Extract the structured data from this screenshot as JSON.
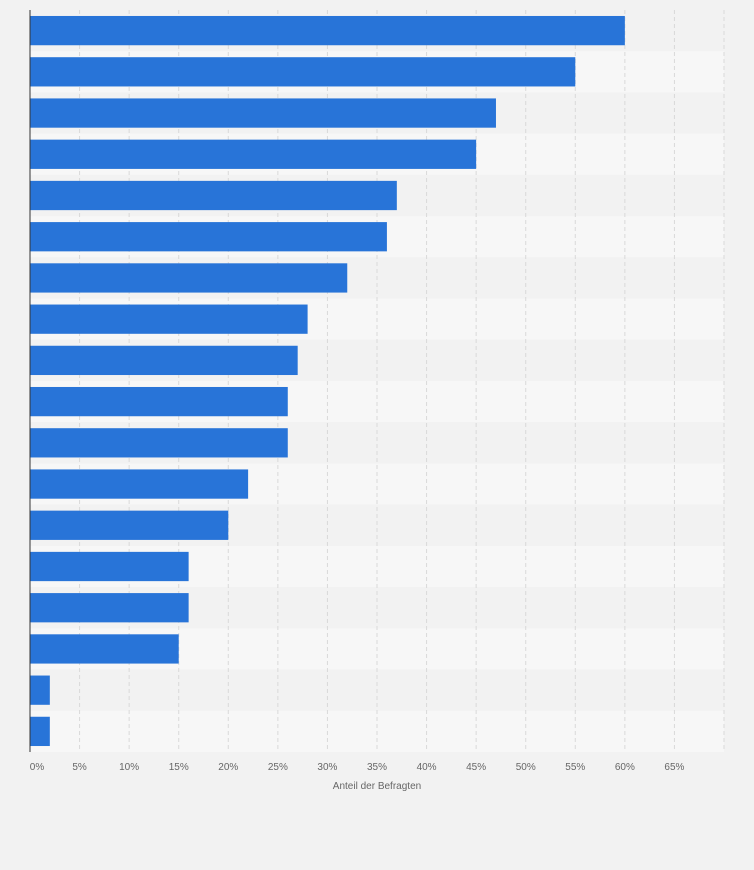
{
  "chart_data": {
    "type": "bar",
    "orientation": "horizontal",
    "categories": [
      "",
      "",
      "",
      "",
      "",
      "",
      "",
      "",
      "",
      "",
      "",
      "",
      "",
      "",
      "",
      "",
      "",
      ""
    ],
    "values": [
      60,
      55,
      47,
      45,
      37,
      36,
      32,
      28,
      27,
      26,
      26,
      22,
      20,
      16,
      16,
      15,
      2,
      2
    ],
    "title": "",
    "xlabel": "Anteil der Befragten",
    "ylabel": "",
    "xlim": [
      0,
      70
    ],
    "xticks": [
      0,
      5,
      10,
      15,
      20,
      25,
      30,
      35,
      40,
      45,
      50,
      55,
      60,
      65
    ],
    "xtick_labels": [
      "0%",
      "5%",
      "10%",
      "15%",
      "20%",
      "25%",
      "30%",
      "35%",
      "40%",
      "45%",
      "50%",
      "55%",
      "60%",
      "65%"
    ],
    "grid": true,
    "colors": {
      "bar": "#2874d8",
      "band_light": "#f7f7f7",
      "band_dark": "#f2f2f2",
      "grid": "#d9d9d9",
      "axis": "#333333",
      "text": "#666666"
    }
  }
}
